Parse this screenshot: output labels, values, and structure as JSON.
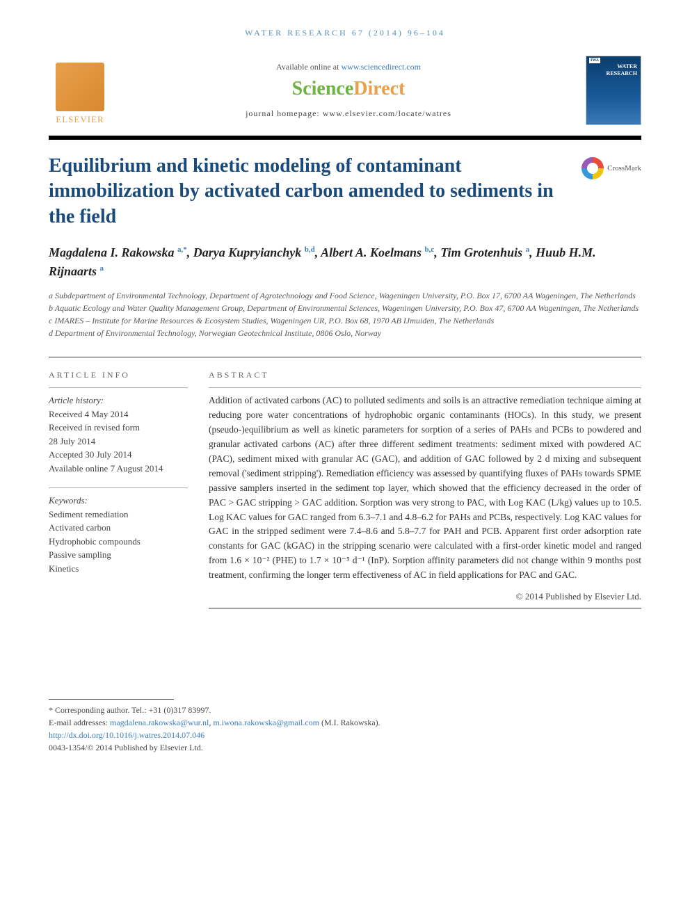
{
  "running_header": "WATER RESEARCH 67 (2014) 96–104",
  "header": {
    "available_text": "Available online at ",
    "available_link": "www.sciencedirect.com",
    "sciencedirect": {
      "science": "Science",
      "direct": "Direct"
    },
    "homepage_label": "journal homepage: ",
    "homepage_url": "www.elsevier.com/locate/watres",
    "publisher_name": "ELSEVIER",
    "journal_cover_line1": "WATER",
    "journal_cover_line2": "RESEARCH",
    "iwa": "IWA"
  },
  "crossmark_label": "CrossMark",
  "title": "Equilibrium and kinetic modeling of contaminant immobilization by activated carbon amended to sediments in the field",
  "authors_html": "Magdalena I. Rakowska <sup>a,*</sup>, Darya Kupryianchyk <sup>b,d</sup>, Albert A. Koelmans <sup>b,c</sup>, Tim Grotenhuis <sup>a</sup>, Huub H.M. Rijnaarts <sup>a</sup>",
  "affiliations": {
    "a": "a Subdepartment of Environmental Technology, Department of Agrotechnology and Food Science, Wageningen University, P.O. Box 17, 6700 AA Wageningen, The Netherlands",
    "b": "b Aquatic Ecology and Water Quality Management Group, Department of Environmental Sciences, Wageningen University, P.O. Box 47, 6700 AA Wageningen, The Netherlands",
    "c": "c IMARES – Institute for Marine Resources & Ecosystem Studies, Wageningen UR, P.O. Box 68, 1970 AB IJmuiden, The Netherlands",
    "d": "d Department of Environmental Technology, Norwegian Geotechnical Institute, 0806 Oslo, Norway"
  },
  "article_info": {
    "section_label": "ARTICLE INFO",
    "history_label": "Article history:",
    "received": "Received 4 May 2014",
    "revised_label": "Received in revised form",
    "revised_date": "28 July 2014",
    "accepted": "Accepted 30 July 2014",
    "online": "Available online 7 August 2014",
    "keywords_label": "Keywords:",
    "keywords": [
      "Sediment remediation",
      "Activated carbon",
      "Hydrophobic compounds",
      "Passive sampling",
      "Kinetics"
    ]
  },
  "abstract": {
    "section_label": "ABSTRACT",
    "text": "Addition of activated carbons (AC) to polluted sediments and soils is an attractive remediation technique aiming at reducing pore water concentrations of hydrophobic organic contaminants (HOCs). In this study, we present (pseudo-)equilibrium as well as kinetic parameters for sorption of a series of PAHs and PCBs to powdered and granular activated carbons (AC) after three different sediment treatments: sediment mixed with powdered AC (PAC), sediment mixed with granular AC (GAC), and addition of GAC followed by 2 d mixing and subsequent removal ('sediment stripping'). Remediation efficiency was assessed by quantifying fluxes of PAHs towards SPME passive samplers inserted in the sediment top layer, which showed that the efficiency decreased in the order of PAC > GAC stripping > GAC addition. Sorption was very strong to PAC, with Log KAC (L/kg) values up to 10.5. Log KAC values for GAC ranged from 6.3–7.1 and 4.8–6.2 for PAHs and PCBs, respectively. Log KAC values for GAC in the stripped sediment were 7.4–8.6 and 5.8–7.7 for PAH and PCB. Apparent first order adsorption rate constants for GAC (kGAC) in the stripping scenario were calculated with a first-order kinetic model and ranged from 1.6 × 10⁻² (PHE) to 1.7 × 10⁻⁵ d⁻¹ (InP). Sorption affinity parameters did not change within 9 months post treatment, confirming the longer term effectiveness of AC in field applications for PAC and GAC.",
    "copyright": "© 2014 Published by Elsevier Ltd."
  },
  "footer": {
    "corresponding": "* Corresponding author. Tel.: +31 (0)317 83997.",
    "email_label": "E-mail addresses: ",
    "email1": "magdalena.rakowska@wur.nl",
    "email2": "m.iwona.rakowska@gmail.com",
    "email_author": " (M.I. Rakowska).",
    "doi": "http://dx.doi.org/10.1016/j.watres.2014.07.046",
    "issn_copyright": "0043-1354/© 2014 Published by Elsevier Ltd."
  }
}
